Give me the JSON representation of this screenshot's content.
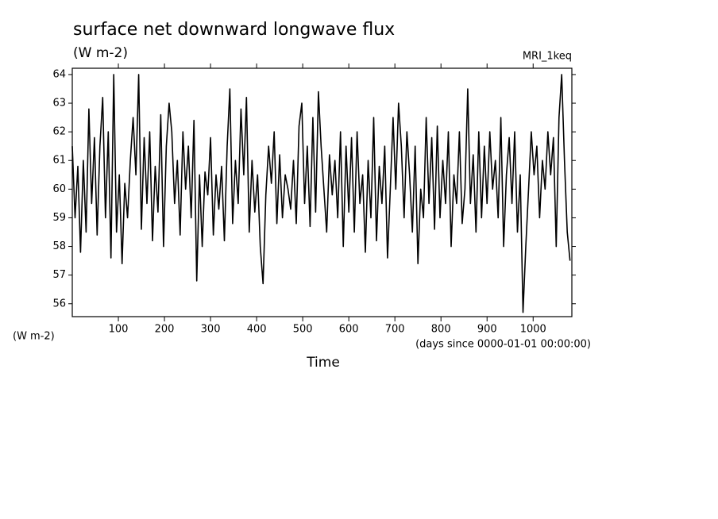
{
  "chart_data": {
    "type": "line",
    "title": "surface net downward longwave flux",
    "subtitle": "(W m-2)",
    "annotation": "MRI_1keq",
    "y_label": "(W m-2)",
    "x_units": "(days since 0000-01-01 00:00:00)",
    "x_label": "Time",
    "xlim": [
      0,
      1084
    ],
    "xticks": [
      100,
      200,
      300,
      400,
      500,
      600,
      700,
      800,
      900,
      1000
    ],
    "ylim": [
      55.55,
      64.22
    ],
    "yticks": [
      56,
      57,
      58,
      59,
      60,
      61,
      62,
      63,
      64
    ],
    "x": [
      0,
      6,
      12,
      18,
      24,
      30,
      36,
      42,
      48,
      54,
      60,
      66,
      72,
      78,
      84,
      90,
      96,
      102,
      108,
      114,
      120,
      126,
      132,
      138,
      144,
      150,
      156,
      162,
      168,
      174,
      180,
      186,
      192,
      198,
      204,
      210,
      216,
      222,
      228,
      234,
      240,
      246,
      252,
      258,
      264,
      270,
      276,
      282,
      288,
      294,
      300,
      306,
      312,
      318,
      324,
      330,
      336,
      342,
      348,
      354,
      360,
      366,
      372,
      378,
      384,
      390,
      396,
      402,
      408,
      414,
      420,
      426,
      432,
      438,
      444,
      450,
      456,
      462,
      468,
      474,
      480,
      486,
      492,
      498,
      504,
      510,
      516,
      522,
      528,
      534,
      540,
      546,
      552,
      558,
      564,
      570,
      576,
      582,
      588,
      594,
      600,
      606,
      612,
      618,
      624,
      630,
      636,
      642,
      648,
      654,
      660,
      666,
      672,
      678,
      684,
      690,
      696,
      702,
      708,
      714,
      720,
      726,
      732,
      738,
      744,
      750,
      756,
      762,
      768,
      774,
      780,
      786,
      792,
      798,
      804,
      810,
      816,
      822,
      828,
      834,
      840,
      846,
      852,
      858,
      864,
      870,
      876,
      882,
      888,
      894,
      900,
      906,
      912,
      918,
      924,
      930,
      936,
      942,
      948,
      954,
      960,
      966,
      972,
      978,
      984,
      990,
      996,
      1002,
      1008,
      1014,
      1020,
      1026,
      1032,
      1038,
      1044,
      1050,
      1056,
      1062,
      1068,
      1074,
      1080
    ],
    "series": [
      {
        "name": "MRI_1keq",
        "color": "#000000",
        "values": [
          61.5,
          59.0,
          60.8,
          57.8,
          61.0,
          58.5,
          62.8,
          59.5,
          61.8,
          58.4,
          61.5,
          63.2,
          59.0,
          62.0,
          57.6,
          64.0,
          58.5,
          60.5,
          57.4,
          60.2,
          59.0,
          61.0,
          62.5,
          60.5,
          64.0,
          58.6,
          61.8,
          59.5,
          62.0,
          58.2,
          60.8,
          59.2,
          62.6,
          58.0,
          61.5,
          63.0,
          62.0,
          59.5,
          61.0,
          58.4,
          62.0,
          60.0,
          61.5,
          59.0,
          62.4,
          56.8,
          60.5,
          58.0,
          60.6,
          59.8,
          61.8,
          58.4,
          60.5,
          59.3,
          60.8,
          58.2,
          61.5,
          63.5,
          58.8,
          61.0,
          59.5,
          62.8,
          60.5,
          63.2,
          58.5,
          61.0,
          59.2,
          60.5,
          58.0,
          56.7,
          59.8,
          61.5,
          60.2,
          62.0,
          58.8,
          61.2,
          59.0,
          60.5,
          60.0,
          59.3,
          61.0,
          58.8,
          62.2,
          63.0,
          59.5,
          61.5,
          58.7,
          62.5,
          59.2,
          63.4,
          61.5,
          60.0,
          58.5,
          61.2,
          59.8,
          61.0,
          59.0,
          62.0,
          58.0,
          61.5,
          59.2,
          61.8,
          58.5,
          62.0,
          59.5,
          60.5,
          57.8,
          61.0,
          59.0,
          62.5,
          58.2,
          60.8,
          59.5,
          61.5,
          57.6,
          60.0,
          62.5,
          60.0,
          63.0,
          61.5,
          59.0,
          62.0,
          60.5,
          58.5,
          61.5,
          57.4,
          60.0,
          59.0,
          62.5,
          59.5,
          61.8,
          58.6,
          62.2,
          59.0,
          61.0,
          59.5,
          62.0,
          58.0,
          60.5,
          59.5,
          62.0,
          58.8,
          60.0,
          63.5,
          59.5,
          61.2,
          58.5,
          62.0,
          59.0,
          61.5,
          59.5,
          62.0,
          60.0,
          61.0,
          59.0,
          62.5,
          58.0,
          60.5,
          61.8,
          59.5,
          62.0,
          58.5,
          60.5,
          55.7,
          58.0,
          60.0,
          62.0,
          60.5,
          61.5,
          59.0,
          61.0,
          60.0,
          62.0,
          60.5,
          61.8,
          58.0,
          62.5,
          64.0,
          61.0,
          58.5,
          57.5
        ]
      }
    ]
  }
}
